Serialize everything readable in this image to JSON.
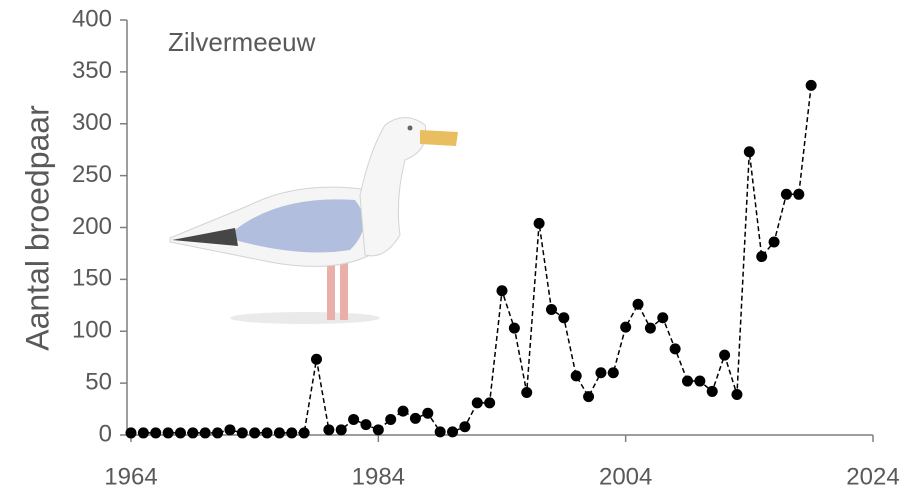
{
  "chart_data": {
    "type": "line",
    "annotation": "Zilvermeeuw",
    "y_label": "Aantal broedpaar",
    "x": [
      1964,
      1965,
      1966,
      1967,
      1968,
      1969,
      1970,
      1971,
      1972,
      1973,
      1974,
      1975,
      1976,
      1977,
      1978,
      1979,
      1980,
      1981,
      1982,
      1983,
      1984,
      1985,
      1986,
      1987,
      1988,
      1989,
      1990,
      1991,
      1992,
      1993,
      1994,
      1995,
      1996,
      1997,
      1998,
      1999,
      2000,
      2001,
      2002,
      2003,
      2004,
      2005,
      2006,
      2007,
      2008,
      2009,
      2010,
      2011,
      2012,
      2013,
      2014,
      2015,
      2016,
      2017,
      2018,
      2019
    ],
    "series": [
      {
        "color": "#000000",
        "values": [
          2,
          2,
          2,
          2,
          2,
          2,
          2,
          2,
          5,
          2,
          2,
          2,
          2,
          2,
          2,
          73,
          5,
          5,
          15,
          10,
          5,
          15,
          23,
          16,
          21,
          3,
          3,
          8,
          31,
          31,
          139,
          103,
          41,
          204,
          121,
          113,
          57,
          37,
          60,
          60,
          104,
          126,
          103,
          113,
          83,
          52,
          52,
          42,
          77,
          39,
          273,
          172,
          186,
          232,
          232,
          337
        ]
      }
    ],
    "xlim": [
      1964,
      2024
    ],
    "xticks": [
      1964,
      1984,
      2004,
      2024
    ],
    "ylim": [
      0,
      400
    ],
    "yticks": [
      0,
      50,
      100,
      150,
      200,
      250,
      300,
      350,
      400
    ]
  }
}
